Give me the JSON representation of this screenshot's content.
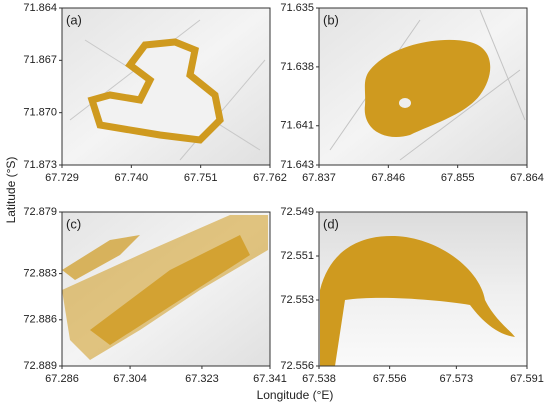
{
  "chart_data": [
    {
      "type": "image",
      "panel_label": "(a)",
      "ylim": [
        71.873,
        71.864
      ],
      "yticks": [
        71.864,
        71.867,
        {
          "value": 71.87,
          "label": "71.870"
        },
        71.873
      ],
      "xlim": [
        67.729,
        67.762
      ],
      "xticks": [
        67.729,
        {
          "value": 67.74,
          "label": "67.740"
        },
        67.751,
        67.762
      ]
    },
    {
      "type": "image",
      "panel_label": "(b)",
      "ylim": [
        71.643,
        71.635
      ],
      "yticks": [
        71.635,
        71.638,
        71.641,
        71.643
      ],
      "xlim": [
        67.837,
        67.864
      ],
      "xticks": [
        67.837,
        67.846,
        67.855,
        67.864
      ]
    },
    {
      "type": "image",
      "panel_label": "(c)",
      "ylim": [
        72.889,
        72.879
      ],
      "yticks": [
        72.879,
        72.883,
        72.886,
        72.889
      ],
      "xlim": [
        67.286,
        67.341
      ],
      "xticks": [
        67.286,
        67.304,
        67.323,
        67.341
      ]
    },
    {
      "type": "image",
      "panel_label": "(d)",
      "ylim": [
        72.556,
        72.549
      ],
      "yticks": [
        72.549,
        72.551,
        72.553,
        72.556
      ],
      "xlim": [
        67.538,
        67.591
      ],
      "xticks": [
        67.538,
        67.556,
        67.573,
        67.591
      ]
    }
  ],
  "xlabel": "Longitude (°E)",
  "ylabel": "Latitude (°S)"
}
